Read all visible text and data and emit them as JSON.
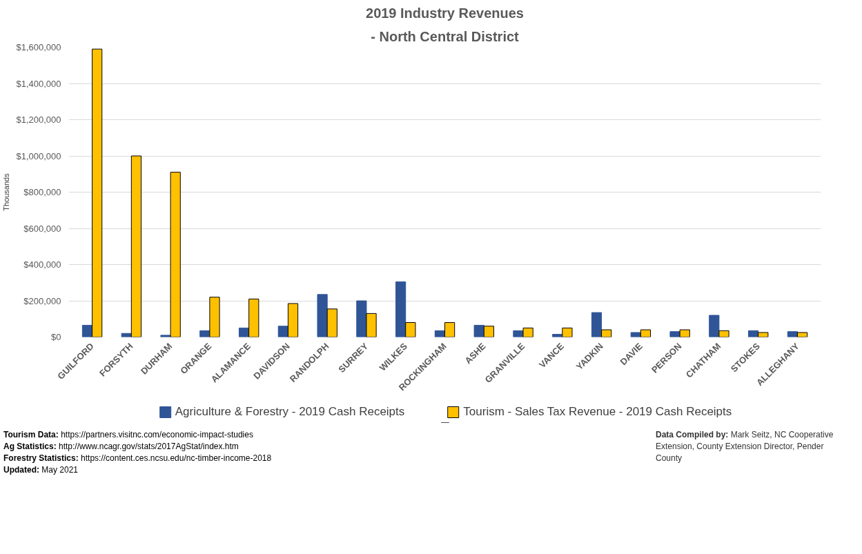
{
  "chart_data": {
    "type": "bar",
    "title": "2019 Industry Revenues",
    "subtitle": "- North Central District",
    "ylabel": "Thousands",
    "categories": [
      "GUILFORD",
      "FORSYTH",
      "DURHAM",
      "ORANGE",
      "ALAMANCE",
      "DAVIDSON",
      "RANDOLPH",
      "SURREY",
      "WILKES",
      "ROCKINGHAM",
      "ASHE",
      "GRANVILLE",
      "VANCE",
      "YADKIN",
      "DAVIE",
      "PERSON",
      "CHATHAM",
      "STOKES",
      "ALLEGHANY"
    ],
    "series": [
      {
        "name": "Agriculture & Forestry - 2019 Cash Receipts",
        "color": "#2f5597",
        "values": [
          65000,
          20000,
          10000,
          35000,
          50000,
          60000,
          235000,
          200000,
          305000,
          35000,
          65000,
          35000,
          15000,
          135000,
          25000,
          30000,
          120000,
          35000,
          30000
        ]
      },
      {
        "name": "Tourism - Sales Tax Revenue - 2019 Cash Receipts",
        "color": "#ffc000",
        "values": [
          1590000,
          1000000,
          910000,
          220000,
          210000,
          185000,
          155000,
          130000,
          80000,
          80000,
          60000,
          50000,
          50000,
          40000,
          40000,
          40000,
          35000,
          25000,
          25000
        ]
      }
    ],
    "ylim": [
      0,
      1600000
    ],
    "yticks": [
      {
        "value": 0,
        "label": "$0"
      },
      {
        "value": 200000,
        "label": "$200,000"
      },
      {
        "value": 400000,
        "label": "$400,000"
      },
      {
        "value": 600000,
        "label": "$600,000"
      },
      {
        "value": 800000,
        "label": "$800,000"
      },
      {
        "value": 1000000,
        "label": "$1,000,000"
      },
      {
        "value": 1200000,
        "label": "$1,200,000"
      },
      {
        "value": 1400000,
        "label": "$1,400,000"
      },
      {
        "value": 1600000,
        "label": "$1,600,000"
      }
    ],
    "grid": "y",
    "legend": "bottom",
    "annotations": [
      "Tourism Data: https://partners.visitnc.com/economic-impact-studies",
      "Ag Statistics: http://www.ncagr.gov/stats/2017AgStat/index.htm",
      "Forestry Statistics: https://content.ces.ncsu.edu/nc-timber-income-2018",
      "Updated: May 2021",
      "Data Compiled by: Mark Seitz, NC Cooperative Extension, County Extension Director, Pender County"
    ]
  }
}
